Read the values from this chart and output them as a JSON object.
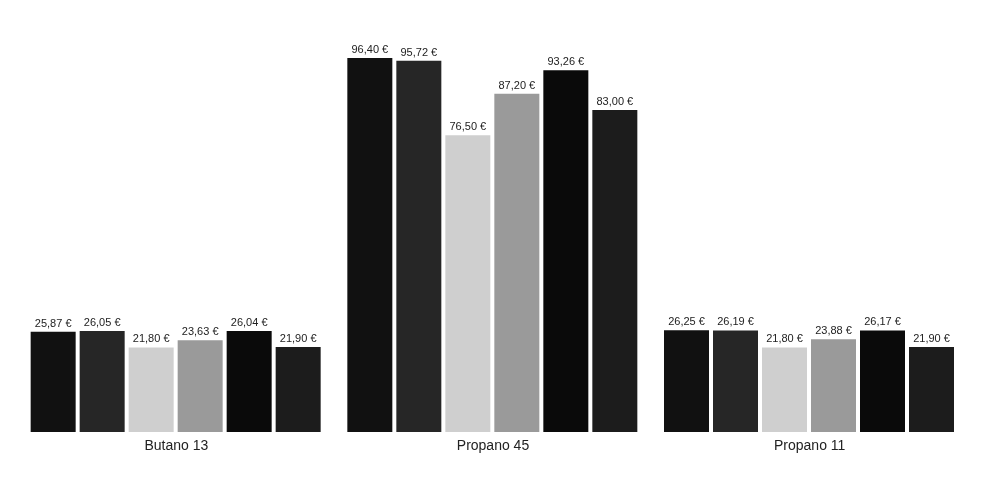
{
  "chart_data": {
    "type": "bar",
    "categories": [
      "Butano 13",
      "Propano 45",
      "Propano 11"
    ],
    "legend": false,
    "grid": false,
    "series": [
      {
        "color": "#111111",
        "values": [
          25.87,
          96.4,
          26.25
        ],
        "value_labels": [
          "25,87 €",
          "96,40 €",
          "26,25 €"
        ]
      },
      {
        "color": "#262626",
        "values": [
          26.05,
          95.72,
          26.19
        ],
        "value_labels": [
          "26,05 €",
          "95,72 €",
          "26,19 €"
        ]
      },
      {
        "color": "#cfcfcf",
        "values": [
          21.8,
          76.5,
          21.8
        ],
        "value_labels": [
          "21,80 €",
          "76,50 €",
          "21,80 €"
        ]
      },
      {
        "color": "#9a9a9a",
        "values": [
          23.63,
          87.2,
          23.88
        ],
        "value_labels": [
          "23,63 €",
          "87,20 €",
          "23,88 €"
        ]
      },
      {
        "color": "#0a0a0a",
        "values": [
          26.04,
          93.26,
          26.17
        ],
        "value_labels": [
          "26,04 €",
          "93,26 €",
          "26,17 €"
        ]
      },
      {
        "color": "#1c1c1c",
        "values": [
          21.9,
          83.0,
          21.9
        ],
        "value_labels": [
          "21,90 €",
          "83,00 €",
          "21,90 €"
        ]
      }
    ]
  }
}
